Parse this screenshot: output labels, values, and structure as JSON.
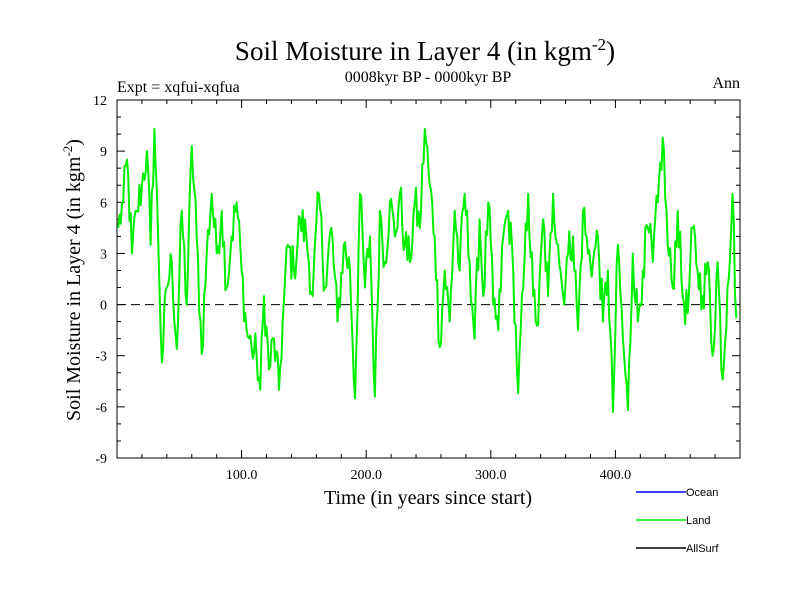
{
  "chart_data": {
    "type": "line",
    "title_main": "Soil Moisture in Layer 4 (in kgm",
    "title_sup": "-2",
    "title_close": ")",
    "expt_label": "Expt = xqfui-xqfua",
    "subtitle": "0008kyr BP - 0000kyr BP",
    "season": "Ann",
    "xlabel": "Time (in years since start)",
    "ylabel_main": "Soil Moisture in Layer 4 (in kgm",
    "ylabel_sup": "-2",
    "ylabel_close": ")",
    "xlim": [
      0,
      500
    ],
    "ylim": [
      -9,
      12
    ],
    "x_ticks": [
      100,
      200,
      300,
      400
    ],
    "x_tick_labels": [
      "100.0",
      "200.0",
      "300.0",
      "400.0"
    ],
    "y_ticks": [
      -9,
      -6,
      -3,
      0,
      3,
      6,
      9,
      12
    ],
    "y_tick_labels": [
      "-9",
      "-6",
      "-3",
      "0",
      "3",
      "6",
      "9",
      "12"
    ],
    "zero_line": 0,
    "legend": [
      {
        "name": "Ocean",
        "color": "#0000ff"
      },
      {
        "name": "Land",
        "color": "#00ee00"
      },
      {
        "name": "AllSurf",
        "color": "#000000"
      }
    ],
    "series": [
      {
        "name": "Land",
        "color": "#00ee00",
        "anchors": [
          [
            1,
            4.5
          ],
          [
            5,
            6
          ],
          [
            8,
            8.5
          ],
          [
            12,
            3
          ],
          [
            16,
            5.5
          ],
          [
            20,
            7
          ],
          [
            24,
            9
          ],
          [
            27,
            3.5
          ],
          [
            30,
            10.3
          ],
          [
            33,
            4
          ],
          [
            36,
            -3.4
          ],
          [
            40,
            1
          ],
          [
            44,
            2.5
          ],
          [
            48,
            -2.6
          ],
          [
            52,
            5.5
          ],
          [
            56,
            0
          ],
          [
            60,
            9.3
          ],
          [
            64,
            4
          ],
          [
            68,
            -2.9
          ],
          [
            72,
            3
          ],
          [
            76,
            6.5
          ],
          [
            80,
            3
          ],
          [
            84,
            5.5
          ],
          [
            88,
            1
          ],
          [
            92,
            4
          ],
          [
            96,
            6
          ],
          [
            100,
            2
          ],
          [
            104,
            -1.5
          ],
          [
            108,
            -2.5
          ],
          [
            112,
            -3
          ],
          [
            115,
            -5
          ],
          [
            118,
            0.5
          ],
          [
            122,
            -3.8
          ],
          [
            126,
            -2
          ],
          [
            130,
            -5
          ],
          [
            133,
            -1
          ],
          [
            137,
            3.5
          ],
          [
            142,
            2
          ],
          [
            147,
            5
          ],
          [
            152,
            4
          ],
          [
            157,
            0.5
          ],
          [
            162,
            6.5
          ],
          [
            167,
            1
          ],
          [
            172,
            4.5
          ],
          [
            177,
            -1
          ],
          [
            182,
            3.5
          ],
          [
            187,
            2
          ],
          [
            191,
            -5.5
          ],
          [
            195,
            6.5
          ],
          [
            199,
            1
          ],
          [
            203,
            4
          ],
          [
            207,
            -5.4
          ],
          [
            211,
            5.5
          ],
          [
            215,
            2.5
          ],
          [
            219,
            6
          ],
          [
            223,
            4
          ],
          [
            227,
            6.5
          ],
          [
            231,
            3.5
          ],
          [
            235,
            2.5
          ],
          [
            239,
            6
          ],
          [
            243,
            4.5
          ],
          [
            247,
            10.3
          ],
          [
            251,
            7
          ],
          [
            255,
            4
          ],
          [
            259,
            -2.5
          ],
          [
            263,
            2
          ],
          [
            267,
            -1
          ],
          [
            271,
            5.5
          ],
          [
            275,
            2
          ],
          [
            279,
            6.5
          ],
          [
            283,
            2.5
          ],
          [
            287,
            -2
          ],
          [
            291,
            5
          ],
          [
            294,
            0.5
          ],
          [
            298,
            6
          ],
          [
            302,
            0
          ],
          [
            306,
            -1.5
          ],
          [
            310,
            4
          ],
          [
            314,
            5.5
          ],
          [
            318,
            2
          ],
          [
            322,
            -5.2
          ],
          [
            326,
            1
          ],
          [
            330,
            6.5
          ],
          [
            334,
            0.5
          ],
          [
            338,
            -1.2
          ],
          [
            342,
            5
          ],
          [
            346,
            0.5
          ],
          [
            350,
            6.5
          ],
          [
            354,
            3.5
          ],
          [
            358,
            0.5
          ],
          [
            362,
            3
          ],
          [
            366,
            4
          ],
          [
            370,
            -1.5
          ],
          [
            374,
            5.5
          ],
          [
            378,
            3
          ],
          [
            382,
            2.5
          ],
          [
            386,
            4
          ],
          [
            390,
            -1
          ],
          [
            394,
            2
          ],
          [
            398,
            -6.3
          ],
          [
            402,
            3.5
          ],
          [
            406,
            -2
          ],
          [
            410,
            -6.2
          ],
          [
            414,
            3
          ],
          [
            418,
            -1
          ],
          [
            422,
            2
          ],
          [
            426,
            4.5
          ],
          [
            430,
            2.5
          ],
          [
            434,
            6
          ],
          [
            438,
            9.8
          ],
          [
            442,
            3.5
          ],
          [
            446,
            1
          ],
          [
            450,
            5.5
          ],
          [
            454,
            0.5
          ],
          [
            458,
            -0.5
          ],
          [
            462,
            4.5
          ],
          [
            466,
            2
          ],
          [
            470,
            0.5
          ],
          [
            474,
            2.5
          ],
          [
            478,
            -3
          ],
          [
            482,
            2.5
          ],
          [
            486,
            -4.4
          ],
          [
            490,
            1
          ],
          [
            494,
            6.5
          ],
          [
            497,
            -0.8
          ]
        ]
      }
    ]
  }
}
